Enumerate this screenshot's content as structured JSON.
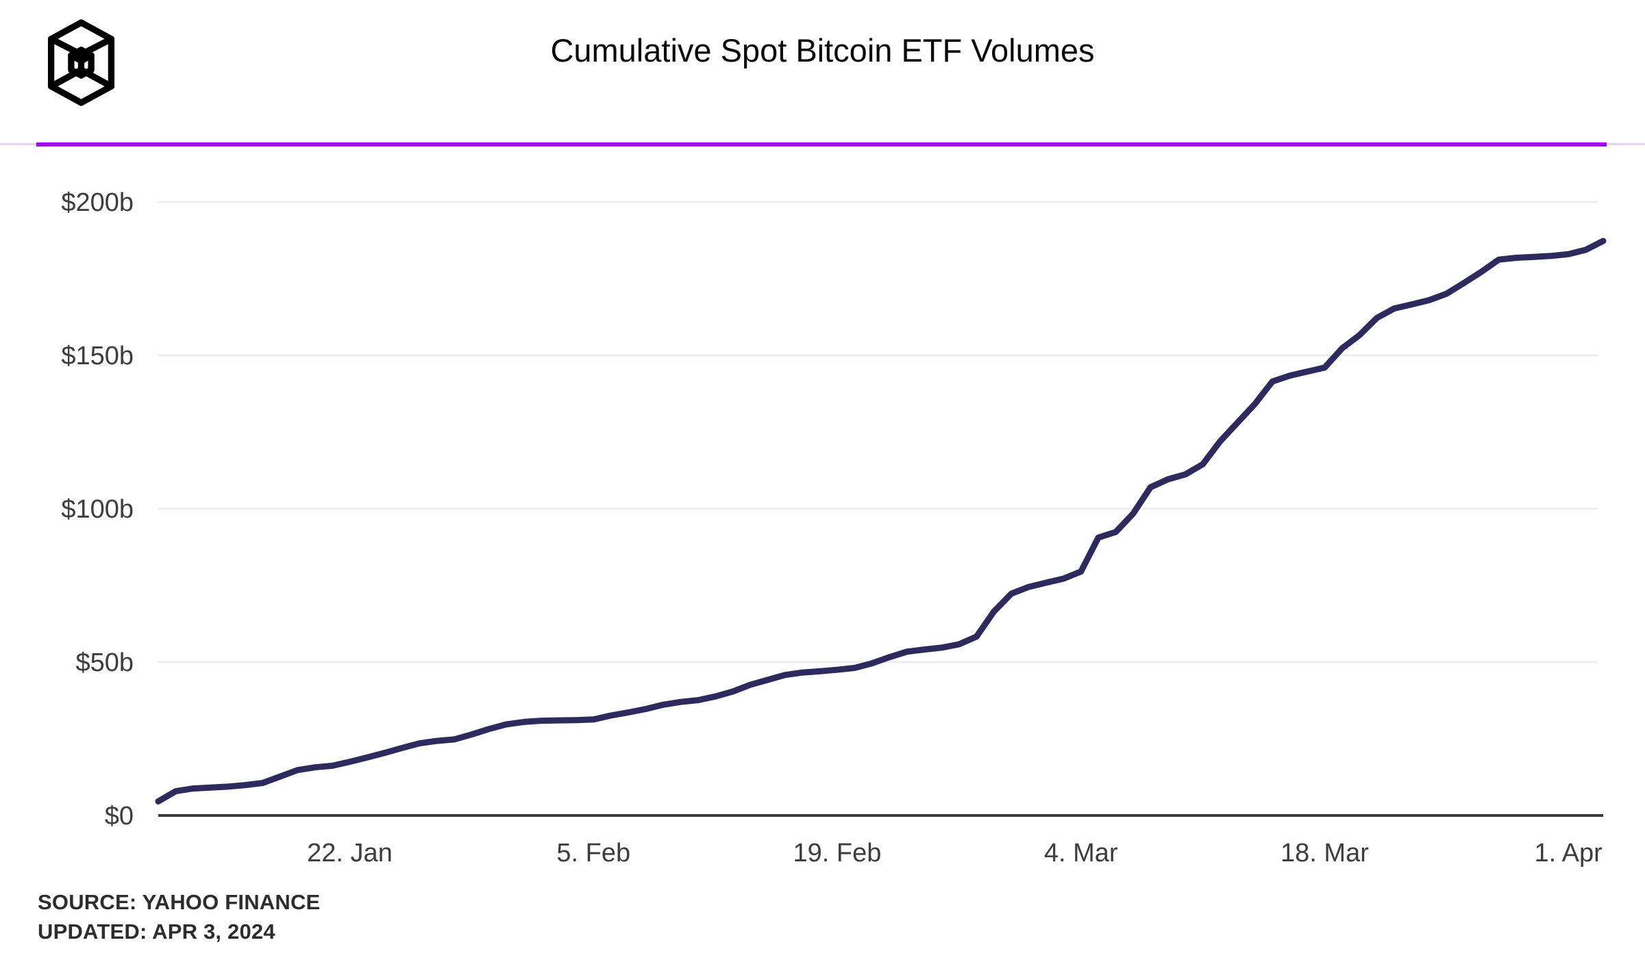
{
  "header": {
    "title": "Cumulative Spot Bitcoin ETF Volumes",
    "logo_name": "wireframe-block-cube"
  },
  "footer": {
    "source_line": "SOURCE: YAHOO FINANCE",
    "updated_line": "UPDATED: APR 3, 2024"
  },
  "colors": {
    "accent_rule": "#a705f2",
    "accent_rule_light": "#e9d0fc",
    "data_line": "#2e2a5e",
    "gridline": "#ededed",
    "axis_line": "#3a3a3a",
    "tick_text": "#3d3d3d",
    "title_text": "#0a0a0a",
    "footer_text": "#2d2d2d",
    "background": "#ffffff",
    "logo": "#000000"
  },
  "chart_data": {
    "type": "line",
    "title": "Cumulative Spot Bitcoin ETF Volumes",
    "ylabel": "",
    "xlabel": "",
    "unit": "billions USD",
    "ylim": [
      0,
      200
    ],
    "grid": "horizontal-only",
    "legend": "none",
    "frequency": "daily",
    "start_date": "2024-01-11",
    "end_date": "2024-04-03",
    "y_ticks": [
      {
        "label": "$0",
        "value": 0
      },
      {
        "label": "$50b",
        "value": 50
      },
      {
        "label": "$100b",
        "value": 100
      },
      {
        "label": "$150b",
        "value": 150
      },
      {
        "label": "$200b",
        "value": 200
      }
    ],
    "x_ticks": [
      {
        "label": "22. Jan",
        "day_index": 11
      },
      {
        "label": "5. Feb",
        "day_index": 25
      },
      {
        "label": "19. Feb",
        "day_index": 39
      },
      {
        "label": "4. Mar",
        "day_index": 53
      },
      {
        "label": "18. Mar",
        "day_index": 67
      },
      {
        "label": "1. Apr",
        "day_index": 81
      }
    ],
    "series": [
      {
        "name": "Cumulative spot Bitcoin ETF volume ($b)",
        "values": [
          4.6,
          7.9,
          8.8,
          9.1,
          9.4,
          9.9,
          10.6,
          12.7,
          14.8,
          15.7,
          16.2,
          17.5,
          18.9,
          20.4,
          22.0,
          23.5,
          24.3,
          24.8,
          26.4,
          28.2,
          29.7,
          30.5,
          30.9,
          31.0,
          31.1,
          31.3,
          32.6,
          33.6,
          34.7,
          36.1,
          37.0,
          37.6,
          38.8,
          40.4,
          42.6,
          44.2,
          45.8,
          46.6,
          47.0,
          47.5,
          48.1,
          49.6,
          51.6,
          53.4,
          54.1,
          54.7,
          55.8,
          58.3,
          66.5,
          72.3,
          74.5,
          75.9,
          77.2,
          79.5,
          90.6,
          92.4,
          98.4,
          107.0,
          109.6,
          111.2,
          114.5,
          122.0,
          128.1,
          134.2,
          141.5,
          143.4,
          144.7,
          146.0,
          152.3,
          156.6,
          162.2,
          165.3,
          166.6,
          168.0,
          170.1,
          173.6,
          177.2,
          181.2,
          181.8,
          182.1,
          182.4,
          183.0,
          184.4,
          187.3
        ]
      }
    ]
  }
}
